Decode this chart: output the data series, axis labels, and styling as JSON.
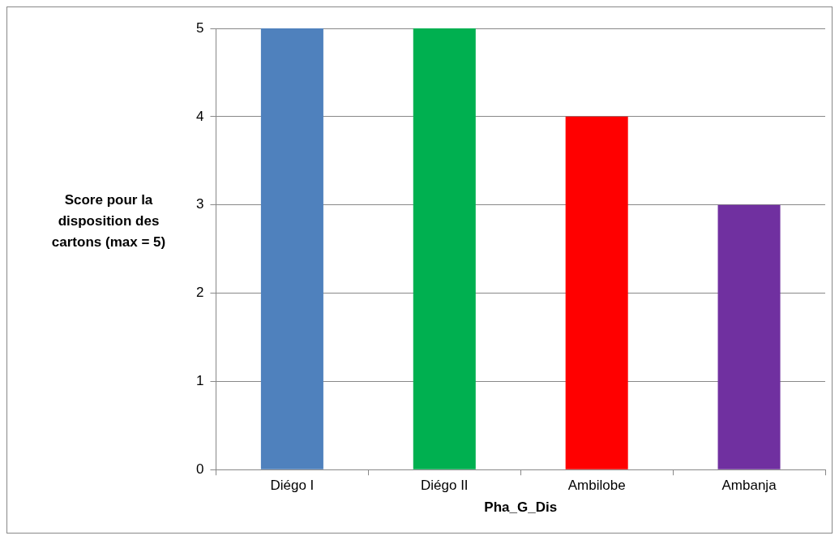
{
  "chart_data": {
    "type": "bar",
    "xlabel": "Pha_G_Dis",
    "ylabel": "Score pour la disposition des cartons (max = 5)",
    "categories": [
      "Diégo I",
      "Diégo II",
      "Ambilobe",
      "Ambanja"
    ],
    "values": [
      5,
      5,
      4,
      3
    ],
    "colors": [
      "#4f81bd",
      "#00b050",
      "#ff0000",
      "#7030a0"
    ],
    "ylim": [
      0,
      5
    ],
    "yticks": [
      0,
      1,
      2,
      3,
      4,
      5
    ],
    "grid": "y",
    "legend": false
  }
}
